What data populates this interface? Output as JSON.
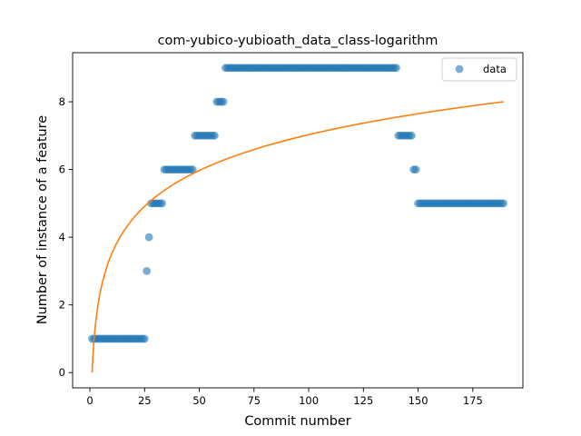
{
  "chart_data": {
    "type": "scatter",
    "title": "com-yubico-yubioath_data_class-logarithm",
    "xlabel": "Commit number",
    "ylabel": "Number of instance of a feature",
    "xlim": [
      -7.9,
      197.9
    ],
    "ylim": [
      -0.45,
      9.45
    ],
    "xticks": [
      0,
      25,
      50,
      75,
      100,
      125,
      150,
      175
    ],
    "yticks": [
      0,
      2,
      4,
      6,
      8
    ],
    "legend_position": "top-right",
    "grid": false,
    "series": [
      {
        "name": "data",
        "kind": "scatter",
        "color": "#1f77b4",
        "alpha": 0.6,
        "segments": [
          {
            "x_from": 1,
            "x_to": 25,
            "y": 1
          },
          {
            "x_from": 26,
            "x_to": 26,
            "y": 3
          },
          {
            "x_from": 27,
            "x_to": 27,
            "y": 4
          },
          {
            "x_from": 28,
            "x_to": 33,
            "y": 5
          },
          {
            "x_from": 34,
            "x_to": 47,
            "y": 6
          },
          {
            "x_from": 48,
            "x_to": 57,
            "y": 7
          },
          {
            "x_from": 58,
            "x_to": 61,
            "y": 8
          },
          {
            "x_from": 62,
            "x_to": 140,
            "y": 9
          },
          {
            "x_from": 141,
            "x_to": 147,
            "y": 7
          },
          {
            "x_from": 148,
            "x_to": 149,
            "y": 6
          },
          {
            "x_from": 150,
            "x_to": 189,
            "y": 5
          }
        ]
      },
      {
        "kind": "line",
        "color": "#ff7f0e",
        "function": "logarithmic fit",
        "x_range": [
          1,
          189
        ],
        "y_range": [
          0,
          8
        ]
      }
    ]
  }
}
